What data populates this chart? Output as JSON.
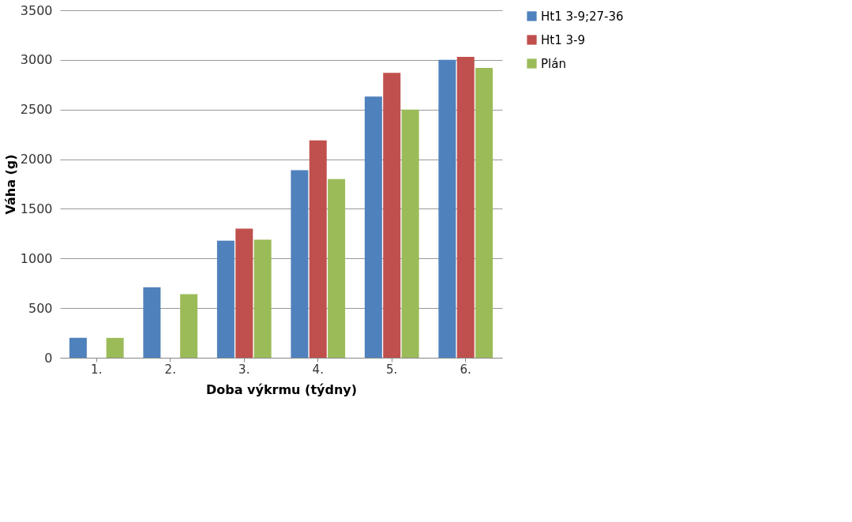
{
  "chart_data": {
    "type": "bar",
    "xlabel": "Doba výkrmu (týdny)",
    "ylabel": "Váha (g)",
    "categories": [
      "1.",
      "2.",
      "3.",
      "4.",
      "5.",
      "6."
    ],
    "series": [
      {
        "name": "Ht1 3-9;27-36",
        "color": "#4f81bd",
        "values": [
          200,
          710,
          1180,
          1890,
          2630,
          3000
        ]
      },
      {
        "name": "Ht1 3-9",
        "color": "#c0504d",
        "values": [
          null,
          null,
          1300,
          2190,
          2870,
          3030
        ]
      },
      {
        "name": "Plán",
        "color": "#9bbb59",
        "values": [
          200,
          640,
          1190,
          1800,
          2500,
          2920
        ]
      }
    ],
    "ylim": [
      0,
      3500
    ],
    "yticks": [
      0,
      500,
      1000,
      1500,
      2000,
      2500,
      3000,
      3500
    ],
    "grid": "y",
    "legend": "right"
  }
}
